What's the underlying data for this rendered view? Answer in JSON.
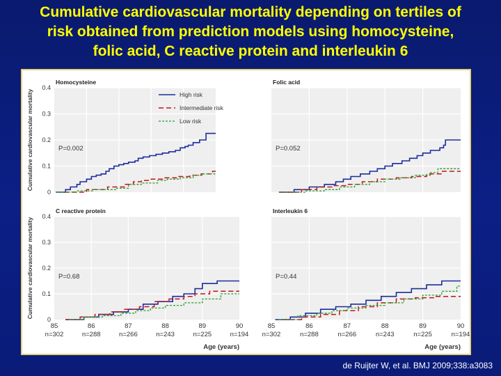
{
  "slide": {
    "title_lines": [
      "Cumulative cardiovascular mortality depending on tertiles of",
      "risk obtained from prediction models using homocysteine,",
      "folic acid, C reactive protein and interleukin 6"
    ],
    "citation": "de Ruijter W, et al. BMJ 2009;338:a3083"
  },
  "colors": {
    "high": "#1c2c9c",
    "intermediate": "#c0141c",
    "low": "#2aa02a",
    "plot_bg": "#efefef",
    "grid": "#ffffff"
  },
  "shared": {
    "ylabel": "Cumulative cardiovascular mortality",
    "xlabel": "Age (years)",
    "at_risk": [
      "n=302",
      "n=288",
      "n=266",
      "n=243",
      "n=225",
      "n=194"
    ],
    "legend": [
      {
        "key": "high",
        "label": "High risk"
      },
      {
        "key": "intermediate",
        "label": "Intermediate risk"
      },
      {
        "key": "low",
        "label": "Low risk"
      }
    ]
  },
  "chart_data": [
    {
      "type": "line",
      "title": "Homocysteine",
      "pvalue": "P=0.002",
      "xlim": [
        85,
        90
      ],
      "ylim": [
        0,
        0.4
      ],
      "xticks": [
        85,
        86,
        87,
        88,
        89,
        90
      ],
      "yticks": [
        0,
        0.1,
        0.2,
        0.3,
        0.4
      ],
      "ytick_labels": [
        "0",
        "0.1",
        "0.2",
        "0.3",
        "0.4"
      ],
      "series": [
        {
          "key": "high",
          "name": "High risk",
          "x": [
            85.05,
            85.35,
            85.5,
            85.7,
            85.8,
            86.0,
            86.15,
            86.3,
            86.45,
            86.6,
            86.7,
            86.85,
            87.0,
            87.15,
            87.3,
            87.5,
            87.6,
            87.75,
            87.95,
            88.15,
            88.35,
            88.55,
            88.75,
            88.9,
            89.05,
            89.15,
            89.3,
            89.5,
            89.7,
            90.0
          ],
          "y": [
            0.0,
            0.01,
            0.02,
            0.03,
            0.04,
            0.05,
            0.06,
            0.065,
            0.07,
            0.08,
            0.09,
            0.1,
            0.105,
            0.11,
            0.115,
            0.12,
            0.13,
            0.135,
            0.14,
            0.145,
            0.15,
            0.155,
            0.16,
            0.17,
            0.175,
            0.18,
            0.19,
            0.2,
            0.225,
            0.225
          ]
        },
        {
          "key": "intermediate",
          "name": "Intermediate risk",
          "x": [
            85.3,
            86.0,
            86.65,
            87.05,
            87.2,
            87.45,
            87.7,
            88.0,
            88.4,
            88.8,
            89.2,
            89.55,
            89.9,
            90.0
          ],
          "y": [
            0.0,
            0.01,
            0.02,
            0.02,
            0.03,
            0.04,
            0.045,
            0.05,
            0.055,
            0.06,
            0.065,
            0.07,
            0.08,
            0.08
          ]
        },
        {
          "key": "low",
          "name": "Low risk",
          "x": [
            85.1,
            85.7,
            86.2,
            86.7,
            86.9,
            87.3,
            87.7,
            88.2,
            88.5,
            88.9,
            89.3,
            89.6,
            90.0
          ],
          "y": [
            0.0,
            0.005,
            0.01,
            0.01,
            0.015,
            0.03,
            0.035,
            0.045,
            0.05,
            0.055,
            0.065,
            0.07,
            0.07
          ]
        }
      ]
    },
    {
      "type": "line",
      "title": "Folic acid",
      "pvalue": "P=0.052",
      "xlim": [
        85,
        90
      ],
      "ylim": [
        0,
        0.4
      ],
      "xticks": [
        85,
        86,
        87,
        88,
        89,
        90
      ],
      "yticks": [
        0,
        0.1,
        0.2,
        0.3,
        0.4
      ],
      "ytick_labels": [
        "0",
        "0.1",
        "0.2",
        "0.3",
        "0.4"
      ],
      "series": [
        {
          "key": "high",
          "name": "High risk",
          "x": [
            85.2,
            85.6,
            86.0,
            86.4,
            86.7,
            86.9,
            87.1,
            87.35,
            87.6,
            87.8,
            88.0,
            88.2,
            88.45,
            88.65,
            88.85,
            89.0,
            89.2,
            89.45,
            89.55,
            89.6,
            90.0
          ],
          "y": [
            0.0,
            0.01,
            0.02,
            0.03,
            0.04,
            0.05,
            0.06,
            0.07,
            0.08,
            0.09,
            0.1,
            0.11,
            0.12,
            0.13,
            0.14,
            0.15,
            0.16,
            0.17,
            0.18,
            0.2,
            0.2
          ]
        },
        {
          "key": "intermediate",
          "name": "Intermediate risk",
          "x": [
            85.2,
            85.8,
            86.2,
            86.6,
            87.0,
            87.4,
            87.8,
            88.3,
            88.7,
            89.1,
            89.5,
            90.0
          ],
          "y": [
            0.0,
            0.01,
            0.02,
            0.025,
            0.03,
            0.04,
            0.05,
            0.055,
            0.06,
            0.07,
            0.08,
            0.08
          ]
        },
        {
          "key": "low",
          "name": "Low risk",
          "x": [
            85.2,
            85.9,
            86.4,
            86.8,
            87.2,
            87.6,
            88.0,
            88.4,
            88.8,
            89.2,
            89.4,
            90.0
          ],
          "y": [
            0.0,
            0.005,
            0.01,
            0.02,
            0.03,
            0.04,
            0.05,
            0.055,
            0.065,
            0.075,
            0.09,
            0.09
          ]
        }
      ]
    },
    {
      "type": "line",
      "title": "C reactive protein",
      "pvalue": "P=0.68",
      "xlim": [
        85,
        90
      ],
      "ylim": [
        0,
        0.4
      ],
      "xticks": [
        85,
        86,
        87,
        88,
        89,
        90
      ],
      "yticks": [
        0,
        0.1,
        0.2,
        0.3,
        0.4
      ],
      "ytick_labels": [
        "0",
        "0.1",
        "0.2",
        "0.3",
        "0.4"
      ],
      "series": [
        {
          "key": "high",
          "name": "High risk",
          "x": [
            85.3,
            85.8,
            86.2,
            86.6,
            87.0,
            87.4,
            87.8,
            88.2,
            88.5,
            88.8,
            89.0,
            89.4,
            90.0
          ],
          "y": [
            0.0,
            0.01,
            0.02,
            0.03,
            0.04,
            0.06,
            0.07,
            0.09,
            0.1,
            0.12,
            0.14,
            0.15,
            0.15
          ]
        },
        {
          "key": "intermediate",
          "name": "Intermediate risk",
          "x": [
            85.3,
            85.7,
            86.1,
            86.5,
            86.9,
            87.3,
            87.7,
            88.1,
            88.5,
            88.8,
            89.2,
            89.8,
            90.0
          ],
          "y": [
            0.0,
            0.01,
            0.02,
            0.03,
            0.04,
            0.05,
            0.07,
            0.08,
            0.09,
            0.1,
            0.11,
            0.11,
            0.11
          ]
        },
        {
          "key": "low",
          "name": "Low risk",
          "x": [
            85.4,
            85.8,
            86.3,
            86.8,
            87.2,
            87.6,
            88.0,
            88.5,
            89.0,
            89.5,
            90.0
          ],
          "y": [
            0.0,
            0.01,
            0.015,
            0.025,
            0.035,
            0.045,
            0.055,
            0.065,
            0.08,
            0.1,
            0.1
          ]
        }
      ]
    },
    {
      "type": "line",
      "title": "Interleukin 6",
      "pvalue": "P=0.44",
      "xlim": [
        85,
        90
      ],
      "ylim": [
        0,
        0.4
      ],
      "xticks": [
        85,
        86,
        87,
        88,
        89,
        90
      ],
      "yticks": [
        0,
        0.1,
        0.2,
        0.3,
        0.4
      ],
      "ytick_labels": [
        "0",
        "0.1",
        "0.2",
        "0.3",
        "0.4"
      ],
      "series": [
        {
          "key": "high",
          "name": "High risk",
          "x": [
            85.1,
            85.5,
            85.9,
            86.3,
            86.7,
            87.1,
            87.5,
            87.9,
            88.3,
            88.7,
            89.1,
            89.5,
            90.0
          ],
          "y": [
            0.0,
            0.01,
            0.025,
            0.04,
            0.05,
            0.06,
            0.075,
            0.09,
            0.105,
            0.12,
            0.135,
            0.15,
            0.15
          ]
        },
        {
          "key": "intermediate",
          "name": "Intermediate risk",
          "x": [
            85.3,
            85.8,
            86.3,
            86.8,
            87.3,
            87.8,
            88.3,
            88.8,
            89.3,
            90.0
          ],
          "y": [
            0.0,
            0.01,
            0.02,
            0.035,
            0.05,
            0.065,
            0.08,
            0.085,
            0.09,
            0.09
          ]
        },
        {
          "key": "low",
          "name": "Low risk",
          "x": [
            85.2,
            85.7,
            86.2,
            86.6,
            87.0,
            87.5,
            88.0,
            88.5,
            89.0,
            89.5,
            89.9,
            90.0
          ],
          "y": [
            0.0,
            0.015,
            0.025,
            0.035,
            0.045,
            0.055,
            0.065,
            0.08,
            0.095,
            0.11,
            0.13,
            0.13
          ]
        }
      ]
    }
  ]
}
